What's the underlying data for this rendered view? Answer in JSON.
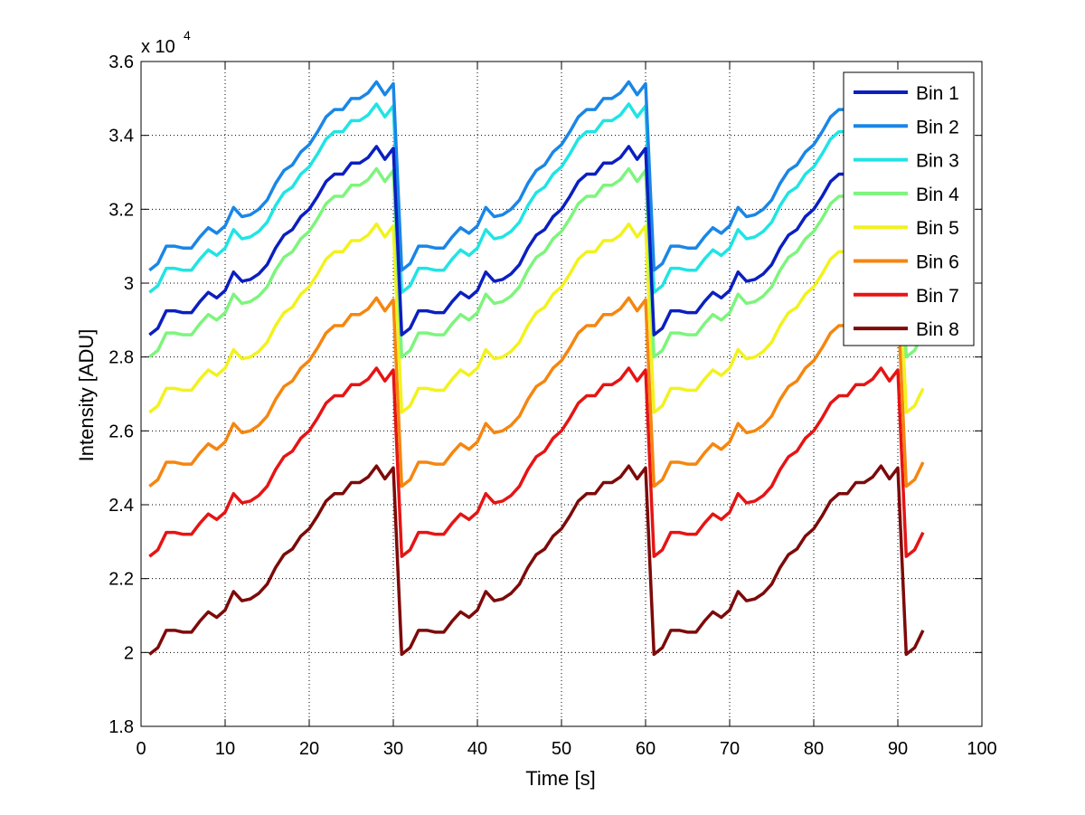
{
  "chart_data": {
    "type": "line",
    "title": "",
    "xlabel": "Time [s]",
    "ylabel": "Intensity [ADU]",
    "xlim": [
      0,
      100
    ],
    "ylim": [
      18000,
      36000
    ],
    "xticks": [
      0,
      10,
      20,
      30,
      40,
      50,
      60,
      70,
      80,
      90,
      100
    ],
    "yticks": [
      18000,
      20000,
      22000,
      24000,
      26000,
      28000,
      30000,
      32000,
      34000,
      36000
    ],
    "ytick_labels": [
      "1.8",
      "2",
      "2.2",
      "2.4",
      "2.6",
      "2.8",
      "3",
      "3.2",
      "3.4",
      "3.6"
    ],
    "xtick_labels": [
      "0",
      "10",
      "20",
      "30",
      "40",
      "50",
      "60",
      "70",
      "80",
      "90",
      "100"
    ],
    "y_exponent_base": "x 10",
    "y_exponent_power": "4",
    "grid": true,
    "legend_position": "top-right",
    "x": [
      1,
      2,
      3,
      4,
      5,
      6,
      7,
      8,
      9,
      10,
      11,
      12,
      13,
      14,
      15,
      16,
      17,
      18,
      19,
      20,
      21,
      22,
      23,
      24,
      25,
      26,
      27,
      28,
      29,
      30,
      31,
      32,
      33,
      34,
      35,
      36,
      37,
      38,
      39,
      40,
      41,
      42,
      43,
      44,
      45,
      46,
      47,
      48,
      49,
      50,
      51,
      52,
      53,
      54,
      55,
      56,
      57,
      58,
      59,
      60,
      61,
      62,
      63,
      64,
      65,
      66,
      67,
      68,
      69,
      70,
      71,
      72,
      73,
      74,
      75,
      76,
      77,
      78,
      79,
      80,
      81,
      82,
      83,
      84,
      85,
      86,
      87,
      88,
      89,
      90,
      91,
      92,
      93
    ],
    "cycle_offsets": [
      0,
      180,
      650,
      650,
      600,
      600,
      900,
      1150,
      1000,
      1200,
      1700,
      1450,
      1500,
      1650,
      1900,
      2350,
      2700,
      2850,
      3200,
      3400,
      3750,
      4150,
      4350,
      4350,
      4650,
      4650,
      4800,
      5100,
      4750,
      5050
    ],
    "partial_offsets": [
      0,
      180,
      650
    ],
    "series": [
      {
        "name": "Bin 1",
        "color": "#0b1fc0",
        "base": 28600
      },
      {
        "name": "Bin 2",
        "color": "#1a86e6",
        "base": 30350
      },
      {
        "name": "Bin 3",
        "color": "#20e4e4",
        "base": 29750
      },
      {
        "name": "Bin 4",
        "color": "#7cf57c",
        "base": 28000
      },
      {
        "name": "Bin 5",
        "color": "#f2f21e",
        "base": 26500
      },
      {
        "name": "Bin 6",
        "color": "#f5860f",
        "base": 24500
      },
      {
        "name": "Bin 7",
        "color": "#e61414",
        "base": 22600
      },
      {
        "name": "Bin 8",
        "color": "#7d0a0a",
        "base": 19950
      }
    ]
  }
}
